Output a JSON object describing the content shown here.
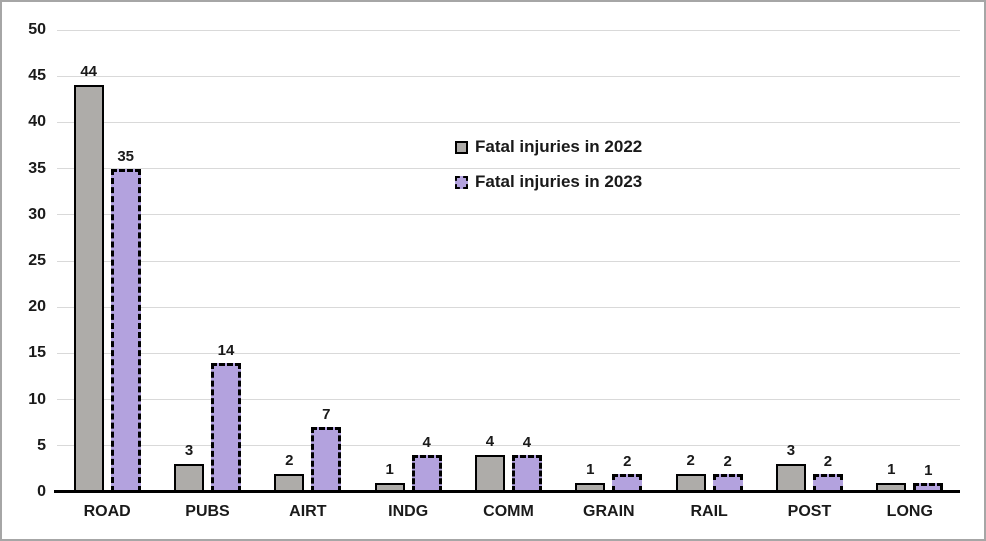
{
  "chart_data": {
    "type": "bar",
    "title": "",
    "xlabel": "",
    "ylabel": "",
    "categories": [
      "ROAD",
      "PUBS",
      "AIRT",
      "INDG",
      "COMM",
      "GRAIN",
      "RAIL",
      "POST",
      "LONG"
    ],
    "series": [
      {
        "name": "Fatal injuries in 2022",
        "year": "2022",
        "values": [
          44,
          3,
          2,
          1,
          4,
          1,
          2,
          3,
          1
        ],
        "fill": "#aeaca9",
        "border_style": "solid"
      },
      {
        "name": "Fatal injuries in 2023",
        "year": "2023",
        "values": [
          35,
          14,
          7,
          4,
          4,
          2,
          2,
          2,
          1
        ],
        "fill": "#b3a2de",
        "border_style": "dashed"
      }
    ],
    "ylim": [
      0,
      50
    ],
    "yticks": [
      0,
      5,
      10,
      15,
      20,
      25,
      30,
      35,
      40,
      45,
      50
    ],
    "grid": true,
    "data_labels": true,
    "legend_position": "inside-top-center",
    "colors": {
      "background": "#ffffff",
      "frame_border": "#a6a6a6",
      "gridline": "#d9d9d9",
      "axis_line": "#000000",
      "bar_border": "#000000",
      "text": "#1a1a1a"
    }
  }
}
